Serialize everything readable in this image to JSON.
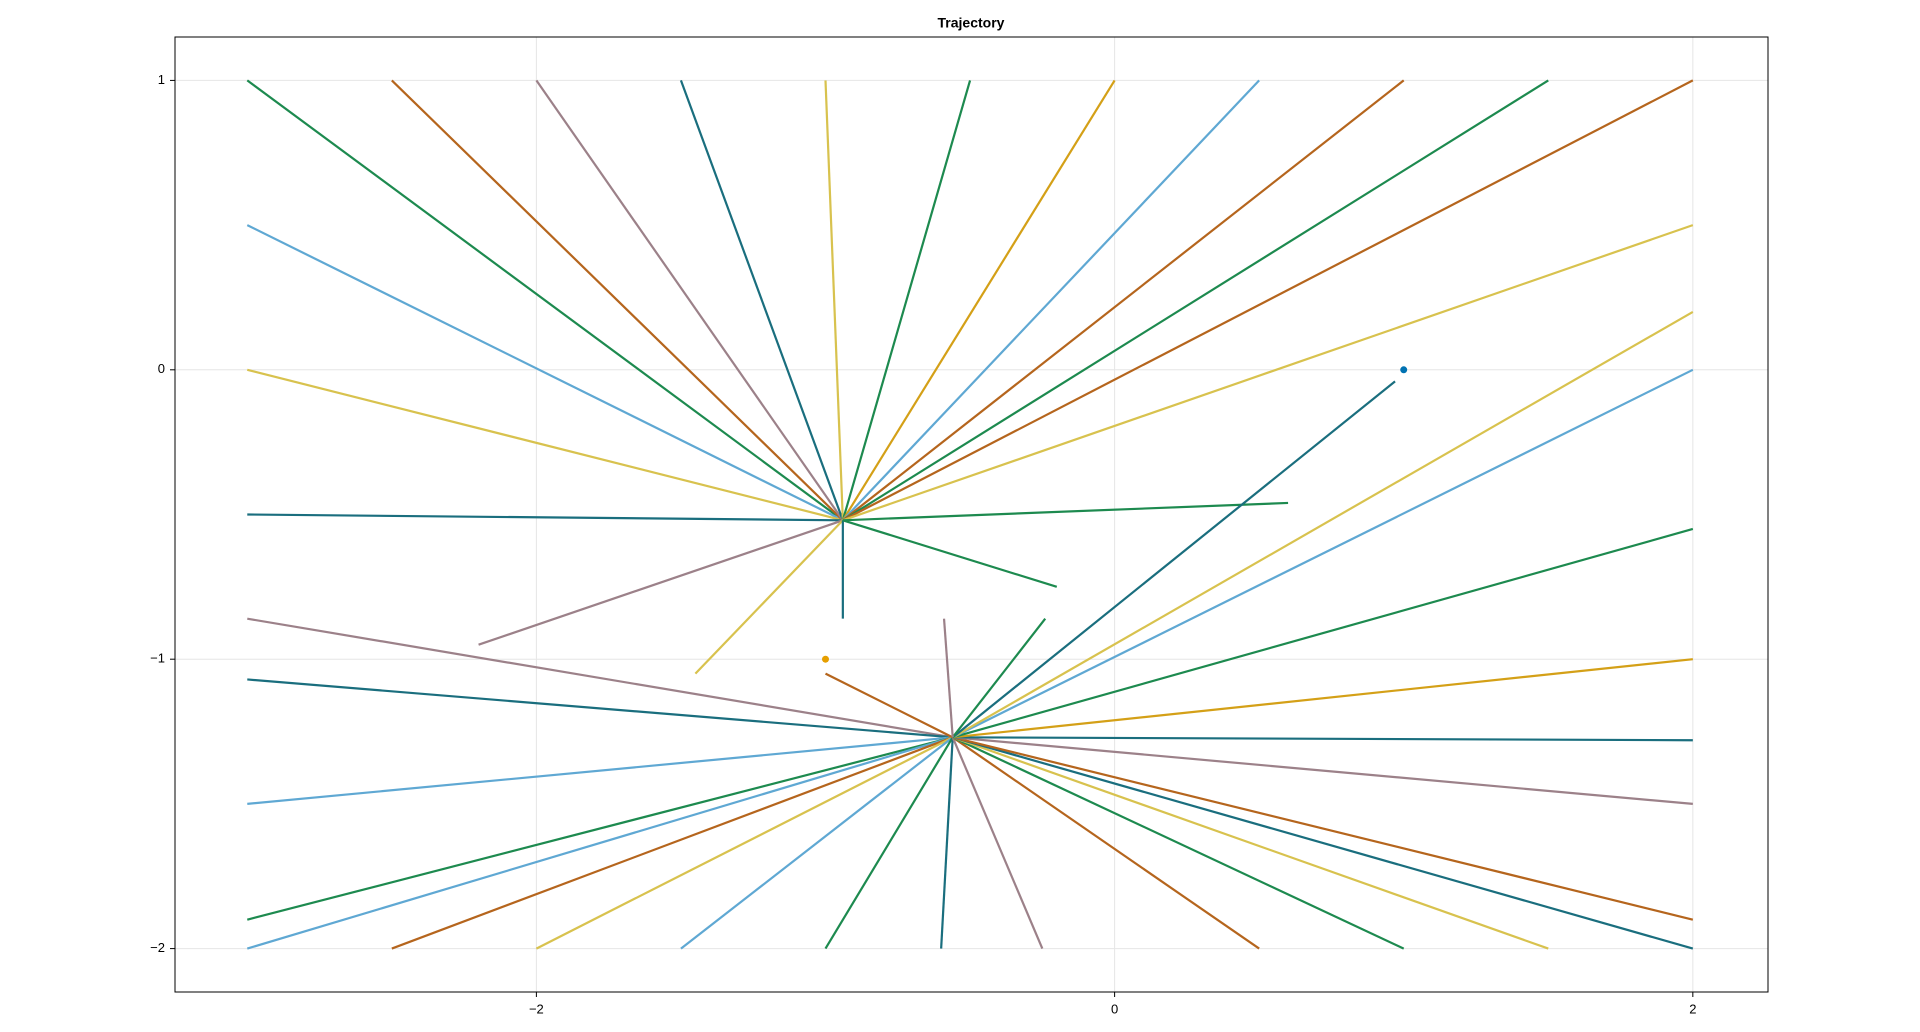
{
  "chart_data": {
    "type": "line",
    "title": "Trajectory",
    "xlim": [
      -3.25,
      2.26
    ],
    "ylim": [
      -2.15,
      1.15
    ],
    "xticks": [
      {
        "value": -2,
        "label": "−2"
      },
      0,
      2
    ],
    "yticks": [
      {
        "value": -2,
        "label": "−2"
      },
      {
        "value": -1,
        "label": "−1"
      },
      0,
      1
    ],
    "grid": true,
    "series": [
      {
        "type": "line",
        "color": "#1d8a4f",
        "x": [
          -3,
          -0.94
        ],
        "y": [
          1,
          -0.52
        ]
      },
      {
        "type": "line",
        "color": "#5fa8d3",
        "x": [
          -3,
          -0.94
        ],
        "y": [
          0.5,
          -0.52
        ]
      },
      {
        "type": "line",
        "color": "#d8c24e",
        "x": [
          -3,
          -0.94
        ],
        "y": [
          0,
          -0.52
        ]
      },
      {
        "type": "line",
        "color": "#1a6e7e",
        "x": [
          -3,
          -0.94
        ],
        "y": [
          -0.5,
          -0.52
        ]
      },
      {
        "type": "line",
        "color": "#b5651d",
        "x": [
          -2.5,
          -0.94
        ],
        "y": [
          1,
          -0.52
        ]
      },
      {
        "type": "line",
        "color": "#9c8189",
        "x": [
          -2,
          -0.94
        ],
        "y": [
          1,
          -0.52
        ]
      },
      {
        "type": "line",
        "color": "#1a6e7e",
        "x": [
          -1.5,
          -0.94
        ],
        "y": [
          1,
          -0.52
        ]
      },
      {
        "type": "line",
        "color": "#d8c24e",
        "x": [
          -1,
          -0.94
        ],
        "y": [
          1,
          -0.52
        ]
      },
      {
        "type": "line",
        "color": "#1d8a4f",
        "x": [
          -0.5,
          -0.94
        ],
        "y": [
          1,
          -0.52
        ]
      },
      {
        "type": "line",
        "color": "#d4a017",
        "x": [
          0,
          -0.94
        ],
        "y": [
          1,
          -0.52
        ]
      },
      {
        "type": "line",
        "color": "#5fa8d3",
        "x": [
          0.5,
          -0.94
        ],
        "y": [
          1,
          -0.52
        ]
      },
      {
        "type": "line",
        "color": "#b5651d",
        "x": [
          1,
          -0.94
        ],
        "y": [
          1,
          -0.52
        ]
      },
      {
        "type": "line",
        "color": "#1d8a4f",
        "x": [
          1.5,
          -0.94
        ],
        "y": [
          1,
          -0.52
        ]
      },
      {
        "type": "line",
        "color": "#b5651d",
        "x": [
          2,
          -0.94
        ],
        "y": [
          1,
          -0.52
        ]
      },
      {
        "type": "line",
        "color": "#d8c24e",
        "x": [
          2,
          -0.94
        ],
        "y": [
          0.5,
          -0.52
        ]
      },
      {
        "type": "line",
        "color": "#9c8189",
        "x": [
          -2.2,
          -0.94
        ],
        "y": [
          -0.95,
          -0.52
        ]
      },
      {
        "type": "line",
        "color": "#d8c24e",
        "x": [
          -1.45,
          -0.94
        ],
        "y": [
          -1.05,
          -0.52
        ]
      },
      {
        "type": "line",
        "color": "#1a6e7e",
        "x": [
          -0.94,
          -0.94
        ],
        "y": [
          -0.86,
          -0.52
        ]
      },
      {
        "type": "line",
        "color": "#1d8a4f",
        "x": [
          -0.2,
          -0.94
        ],
        "y": [
          -0.75,
          -0.52
        ]
      },
      {
        "type": "line",
        "color": "#1d8a4f",
        "x": [
          0.6,
          -0.94
        ],
        "y": [
          -0.46,
          -0.52
        ]
      },
      {
        "type": "line",
        "color": "#9c8189",
        "x": [
          -3,
          -0.56
        ],
        "y": [
          -0.86,
          -1.27
        ]
      },
      {
        "type": "line",
        "color": "#1a6e7e",
        "x": [
          -3,
          -0.56
        ],
        "y": [
          -1.07,
          -1.27
        ]
      },
      {
        "type": "line",
        "color": "#5fa8d3",
        "x": [
          -3,
          -0.56
        ],
        "y": [
          -1.5,
          -1.27
        ]
      },
      {
        "type": "line",
        "color": "#1d8a4f",
        "x": [
          -3,
          -0.56
        ],
        "y": [
          -1.9,
          -1.27
        ]
      },
      {
        "type": "line",
        "color": "#5fa8d3",
        "x": [
          -3,
          -0.56
        ],
        "y": [
          -2,
          -1.27
        ]
      },
      {
        "type": "line",
        "color": "#b5651d",
        "x": [
          -2.5,
          -0.56
        ],
        "y": [
          -2,
          -1.27
        ]
      },
      {
        "type": "line",
        "color": "#d8c24e",
        "x": [
          -2,
          -0.56
        ],
        "y": [
          -2,
          -1.27
        ]
      },
      {
        "type": "line",
        "color": "#5fa8d3",
        "x": [
          -1.5,
          -0.56
        ],
        "y": [
          -2,
          -1.27
        ]
      },
      {
        "type": "line",
        "color": "#1d8a4f",
        "x": [
          -1,
          -0.56
        ],
        "y": [
          -2,
          -1.27
        ]
      },
      {
        "type": "line",
        "color": "#1a6e7e",
        "x": [
          -0.6,
          -0.56
        ],
        "y": [
          -2,
          -1.27
        ]
      },
      {
        "type": "line",
        "color": "#9c8189",
        "x": [
          -0.25,
          -0.56
        ],
        "y": [
          -2,
          -1.27
        ]
      },
      {
        "type": "line",
        "color": "#b5651d",
        "x": [
          0.5,
          -0.56
        ],
        "y": [
          -2,
          -1.27
        ]
      },
      {
        "type": "line",
        "color": "#1d8a4f",
        "x": [
          1,
          -0.56
        ],
        "y": [
          -2,
          -1.27
        ]
      },
      {
        "type": "line",
        "color": "#d8c24e",
        "x": [
          1.5,
          -0.56
        ],
        "y": [
          -2,
          -1.27
        ]
      },
      {
        "type": "line",
        "color": "#1a6e7e",
        "x": [
          2,
          -0.56
        ],
        "y": [
          -2,
          -1.27
        ]
      },
      {
        "type": "line",
        "color": "#b5651d",
        "x": [
          2,
          -0.56
        ],
        "y": [
          -1.9,
          -1.27
        ]
      },
      {
        "type": "line",
        "color": "#9c8189",
        "x": [
          2,
          -0.56
        ],
        "y": [
          -1.5,
          -1.27
        ]
      },
      {
        "type": "line",
        "color": "#1a6e7e",
        "x": [
          2,
          -0.56
        ],
        "y": [
          -1.28,
          -1.27
        ]
      },
      {
        "type": "line",
        "color": "#d4a017",
        "x": [
          2,
          -0.56
        ],
        "y": [
          -1,
          -1.27
        ]
      },
      {
        "type": "line",
        "color": "#1d8a4f",
        "x": [
          2,
          -0.56
        ],
        "y": [
          -0.55,
          -1.27
        ]
      },
      {
        "type": "line",
        "color": "#5fa8d3",
        "x": [
          2,
          -0.56
        ],
        "y": [
          0,
          -1.27
        ]
      },
      {
        "type": "line",
        "color": "#d8c24e",
        "x": [
          2,
          -0.56
        ],
        "y": [
          0.2,
          -1.27
        ]
      },
      {
        "type": "line",
        "color": "#1a6e7e",
        "x": [
          0.97,
          -0.56
        ],
        "y": [
          -0.04,
          -1.27
        ]
      },
      {
        "type": "line",
        "color": "#b5651d",
        "x": [
          -1.0,
          -0.56
        ],
        "y": [
          -1.05,
          -1.27
        ]
      },
      {
        "type": "line",
        "color": "#1d8a4f",
        "x": [
          -0.24,
          -0.56
        ],
        "y": [
          -0.86,
          -1.27
        ]
      },
      {
        "type": "line",
        "color": "#9c8189",
        "x": [
          -0.59,
          -0.56
        ],
        "y": [
          -0.86,
          -1.27
        ]
      },
      {
        "type": "scatter",
        "color": "#0072b2",
        "x": [
          1
        ],
        "y": [
          0
        ]
      },
      {
        "type": "scatter",
        "color": "#e69f00",
        "x": [
          -1
        ],
        "y": [
          -1
        ]
      }
    ]
  }
}
